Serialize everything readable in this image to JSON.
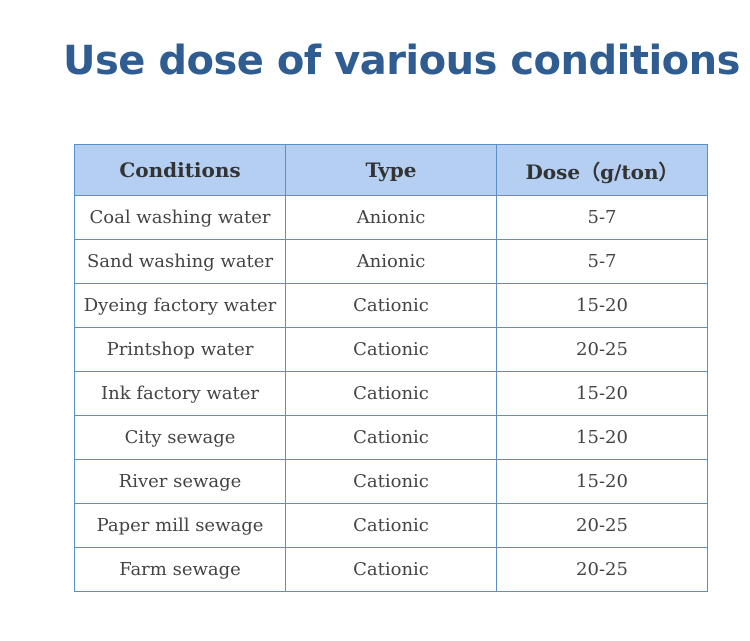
{
  "header": {
    "title": "Use dose of various conditions"
  },
  "table": {
    "columns": [
      "Conditions",
      "Type",
      "Dose（g/ton）"
    ],
    "rows": [
      [
        "Coal washing water",
        "Anionic",
        "5-7"
      ],
      [
        "Sand washing water",
        "Anionic",
        "5-7"
      ],
      [
        "Dyeing factory water",
        "Cationic",
        "15-20"
      ],
      [
        "Printshop water",
        "Cationic",
        "20-25"
      ],
      [
        "Ink factory water",
        "Cationic",
        "15-20"
      ],
      [
        "City sewage",
        "Cationic",
        "15-20"
      ],
      [
        "River sewage",
        "Cationic",
        "15-20"
      ],
      [
        "Paper mill sewage",
        "Cationic",
        "20-25"
      ],
      [
        "Farm sewage",
        "Cationic",
        "20-25"
      ]
    ]
  }
}
